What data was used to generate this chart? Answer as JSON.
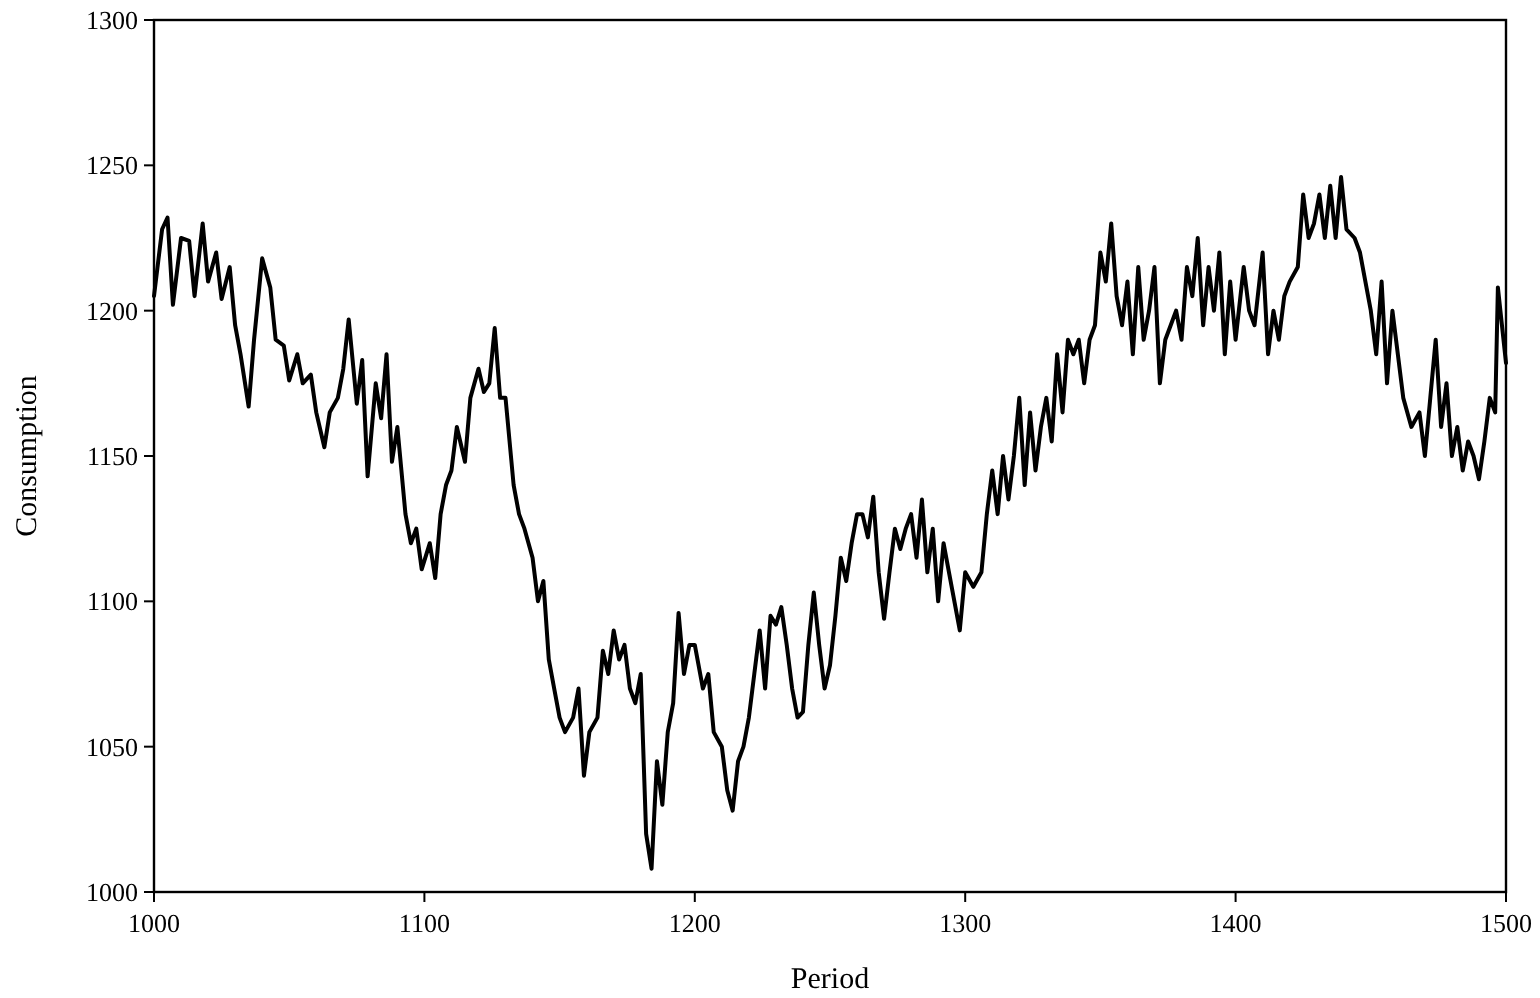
{
  "chart_data": {
    "type": "line",
    "xlabel": "Period",
    "ylabel": "Consumption",
    "xlim": [
      1000,
      1500
    ],
    "ylim": [
      1000,
      1300
    ],
    "xticks": [
      1000,
      1100,
      1200,
      1300,
      1400,
      1500
    ],
    "yticks": [
      1000,
      1050,
      1100,
      1150,
      1200,
      1250,
      1300
    ],
    "grid": false,
    "marker": "none",
    "line_style": "solid",
    "series": [
      {
        "color": "#000000",
        "x": [
          1000,
          1003,
          1005,
          1007,
          1010,
          1013,
          1015,
          1018,
          1020,
          1023,
          1025,
          1028,
          1030,
          1032,
          1035,
          1037,
          1040,
          1043,
          1045,
          1048,
          1050,
          1053,
          1055,
          1058,
          1060,
          1063,
          1065,
          1068,
          1070,
          1072,
          1075,
          1077,
          1079,
          1082,
          1084,
          1086,
          1088,
          1090,
          1093,
          1095,
          1097,
          1099,
          1102,
          1104,
          1106,
          1108,
          1110,
          1112,
          1115,
          1117,
          1120,
          1122,
          1124,
          1126,
          1128,
          1130,
          1133,
          1135,
          1137,
          1140,
          1142,
          1144,
          1146,
          1148,
          1150,
          1152,
          1155,
          1157,
          1159,
          1161,
          1164,
          1166,
          1168,
          1170,
          1172,
          1174,
          1176,
          1178,
          1180,
          1182,
          1184,
          1186,
          1188,
          1190,
          1192,
          1194,
          1196,
          1198,
          1200,
          1203,
          1205,
          1207,
          1210,
          1212,
          1214,
          1216,
          1218,
          1220,
          1222,
          1224,
          1226,
          1228,
          1230,
          1232,
          1234,
          1236,
          1238,
          1240,
          1242,
          1244,
          1246,
          1248,
          1250,
          1252,
          1254,
          1256,
          1258,
          1260,
          1262,
          1264,
          1266,
          1268,
          1270,
          1272,
          1274,
          1276,
          1278,
          1280,
          1282,
          1284,
          1286,
          1288,
          1290,
          1292,
          1294,
          1296,
          1298,
          1300,
          1303,
          1306,
          1308,
          1310,
          1312,
          1314,
          1316,
          1318,
          1320,
          1322,
          1324,
          1326,
          1328,
          1330,
          1332,
          1334,
          1336,
          1338,
          1340,
          1342,
          1344,
          1346,
          1348,
          1350,
          1352,
          1354,
          1356,
          1358,
          1360,
          1362,
          1364,
          1366,
          1368,
          1370,
          1372,
          1374,
          1376,
          1378,
          1380,
          1382,
          1384,
          1386,
          1388,
          1390,
          1392,
          1394,
          1396,
          1398,
          1400,
          1403,
          1405,
          1407,
          1410,
          1412,
          1414,
          1416,
          1418,
          1420,
          1423,
          1425,
          1427,
          1429,
          1431,
          1433,
          1435,
          1437,
          1439,
          1441,
          1444,
          1446,
          1448,
          1450,
          1452,
          1454,
          1456,
          1458,
          1460,
          1462,
          1465,
          1468,
          1470,
          1472,
          1474,
          1476,
          1478,
          1480,
          1482,
          1484,
          1486,
          1488,
          1490,
          1492,
          1494,
          1496,
          1497,
          1500
        ],
        "values": [
          1205,
          1228,
          1232,
          1202,
          1225,
          1224,
          1205,
          1230,
          1210,
          1220,
          1204,
          1215,
          1195,
          1185,
          1167,
          1190,
          1218,
          1208,
          1190,
          1188,
          1176,
          1185,
          1175,
          1178,
          1165,
          1153,
          1165,
          1170,
          1180,
          1197,
          1168,
          1183,
          1143,
          1175,
          1163,
          1185,
          1148,
          1160,
          1130,
          1120,
          1125,
          1111,
          1120,
          1108,
          1130,
          1140,
          1145,
          1160,
          1148,
          1170,
          1180,
          1172,
          1175,
          1194,
          1170,
          1170,
          1140,
          1130,
          1125,
          1115,
          1100,
          1107,
          1080,
          1070,
          1060,
          1055,
          1060,
          1070,
          1040,
          1055,
          1060,
          1083,
          1075,
          1090,
          1080,
          1085,
          1070,
          1065,
          1075,
          1020,
          1008,
          1045,
          1030,
          1055,
          1065,
          1096,
          1075,
          1085,
          1085,
          1070,
          1075,
          1055,
          1050,
          1035,
          1028,
          1045,
          1050,
          1060,
          1075,
          1090,
          1070,
          1095,
          1092,
          1098,
          1085,
          1070,
          1060,
          1062,
          1085,
          1103,
          1085,
          1070,
          1078,
          1095,
          1115,
          1107,
          1120,
          1130,
          1130,
          1122,
          1136,
          1110,
          1094,
          1110,
          1125,
          1118,
          1125,
          1130,
          1115,
          1135,
          1110,
          1125,
          1100,
          1120,
          1110,
          1100,
          1090,
          1110,
          1105,
          1110,
          1130,
          1145,
          1130,
          1150,
          1135,
          1150,
          1170,
          1140,
          1165,
          1145,
          1160,
          1170,
          1155,
          1185,
          1165,
          1190,
          1185,
          1190,
          1175,
          1190,
          1195,
          1220,
          1210,
          1230,
          1205,
          1195,
          1210,
          1185,
          1215,
          1190,
          1200,
          1215,
          1175,
          1190,
          1195,
          1200,
          1190,
          1215,
          1205,
          1225,
          1195,
          1215,
          1200,
          1220,
          1185,
          1210,
          1190,
          1215,
          1200,
          1195,
          1220,
          1185,
          1200,
          1190,
          1205,
          1210,
          1215,
          1240,
          1225,
          1230,
          1240,
          1225,
          1243,
          1225,
          1246,
          1228,
          1225,
          1220,
          1210,
          1200,
          1185,
          1210,
          1175,
          1200,
          1185,
          1170,
          1160,
          1165,
          1150,
          1170,
          1190,
          1160,
          1175,
          1150,
          1160,
          1145,
          1155,
          1150,
          1142,
          1155,
          1170,
          1165,
          1208,
          1182
        ]
      }
    ]
  }
}
